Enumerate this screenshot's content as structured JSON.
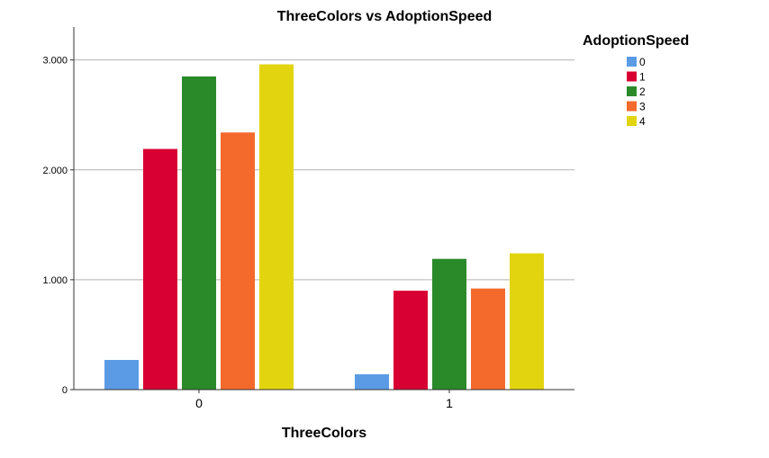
{
  "chart_data": {
    "type": "bar",
    "title": "ThreeColors vs AdoptionSpeed",
    "xlabel": "ThreeColors",
    "ylabel": "",
    "categories": [
      "0",
      "1"
    ],
    "ylim": [
      0,
      3300
    ],
    "yticks": [
      0,
      1000,
      2000,
      3000
    ],
    "ytick_labels": [
      "0",
      "1.000",
      "2.000",
      "3.000"
    ],
    "grid": true,
    "legend_title": "AdoptionSpeed",
    "legend_position": "top-right",
    "series": [
      {
        "name": "0",
        "color": "#5b9be6",
        "values": [
          270,
          140
        ]
      },
      {
        "name": "1",
        "color": "#d80032",
        "values": [
          2190,
          900
        ]
      },
      {
        "name": "2",
        "color": "#2a8a2a",
        "values": [
          2850,
          1190
        ]
      },
      {
        "name": "3",
        "color": "#f46a2c",
        "values": [
          2340,
          920
        ]
      },
      {
        "name": "4",
        "color": "#e2d50f",
        "values": [
          2960,
          1240
        ]
      }
    ]
  }
}
